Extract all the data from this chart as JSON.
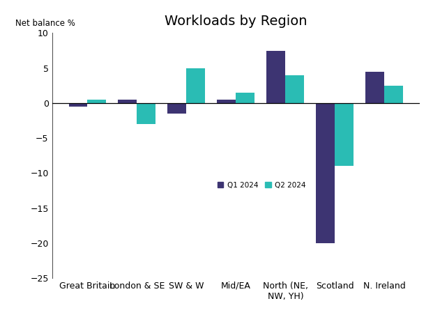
{
  "title": "Workloads by Region",
  "ylabel": "Net balance %",
  "categories": [
    "Great Britain",
    "London & SE",
    "SW & W",
    "Mid/EA",
    "North (NE,\nNW, YH)",
    "Scotland",
    "N. Ireland"
  ],
  "q1_2024": [
    -0.5,
    0.5,
    -1.5,
    0.5,
    7.5,
    -20.0,
    4.5
  ],
  "q2_2024": [
    0.5,
    -3.0,
    5.0,
    1.5,
    4.0,
    -9.0,
    2.5
  ],
  "color_q1": "#3d3472",
  "color_q2": "#2abcb4",
  "ylim": [
    -25,
    10
  ],
  "yticks": [
    -25,
    -20,
    -15,
    -10,
    -5,
    0,
    5,
    10
  ],
  "bar_width": 0.38,
  "legend_labels": [
    "Q1 2024",
    "Q2 2024"
  ],
  "title_fontsize": 14,
  "tick_fontsize": 9,
  "background_color": "#ffffff"
}
